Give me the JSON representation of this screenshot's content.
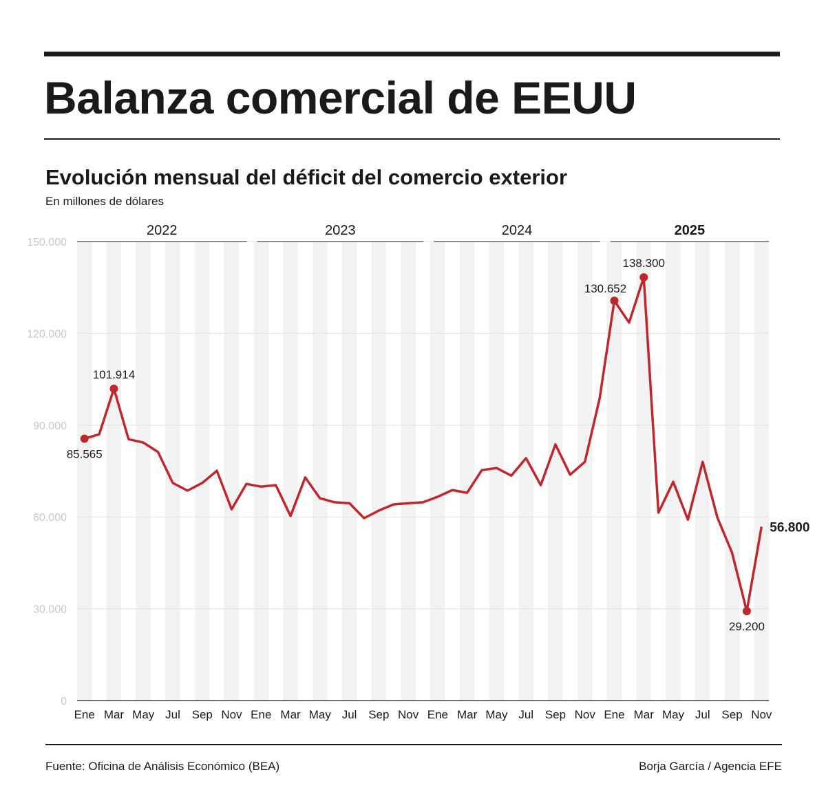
{
  "title": "Balanza comercial de EEUU",
  "subtitle": "Evolución mensual del déficit del comercio exterior",
  "unit": "En millones de dólares",
  "source": "Fuente: Oficina de Análisis Económico (BEA)",
  "credit": "Borja García / Agencia EFE",
  "colors": {
    "line": "#c0272d",
    "stripe": "#f2f2f2",
    "grid": "#e3e3e3",
    "axis_label": "#c8c8c8"
  },
  "chart_data": {
    "type": "line",
    "title": "Evolución mensual del déficit del comercio exterior",
    "ylabel": "En millones de dólares",
    "ylim": [
      0,
      150000
    ],
    "yticks": [
      0,
      30000,
      60000,
      90000,
      120000,
      150000
    ],
    "ytick_labels": [
      "0",
      "30.000",
      "60.000",
      "90.000",
      "120.000",
      "150.000"
    ],
    "years": [
      {
        "label": "2022",
        "bold": false
      },
      {
        "label": "2023",
        "bold": false
      },
      {
        "label": "2024",
        "bold": false
      },
      {
        "label": "2025",
        "bold": true
      }
    ],
    "xtick_labels": [
      "Ene",
      "Mar",
      "May",
      "Jul",
      "Sep",
      "Nov"
    ],
    "grid": true,
    "values": [
      85565,
      87000,
      101914,
      85400,
      84300,
      81200,
      71100,
      68600,
      71100,
      75100,
      62500,
      70800,
      69900,
      70400,
      60300,
      72900,
      66100,
      64800,
      64500,
      59600,
      62100,
      64100,
      64500,
      64800,
      66600,
      68800,
      67900,
      75300,
      76000,
      73500,
      79200,
      70400,
      83700,
      73800,
      78000,
      98700,
      130652,
      123500,
      138300,
      61400,
      71500,
      59100,
      78000,
      59800,
      48300,
      29200,
      56800
    ],
    "annotations": [
      {
        "index": 0,
        "label": "85.565",
        "pos": "below",
        "dot": true
      },
      {
        "index": 2,
        "label": "101.914",
        "pos": "above",
        "dot": true
      },
      {
        "index": 36,
        "label": "130.652",
        "pos": "above-left",
        "dot": true
      },
      {
        "index": 38,
        "label": "138.300",
        "pos": "above",
        "dot": true
      },
      {
        "index": 45,
        "label": "29.200",
        "pos": "below",
        "dot": true
      },
      {
        "index": 46,
        "label": "56.800",
        "pos": "right",
        "dot": false,
        "bold": true
      }
    ]
  }
}
